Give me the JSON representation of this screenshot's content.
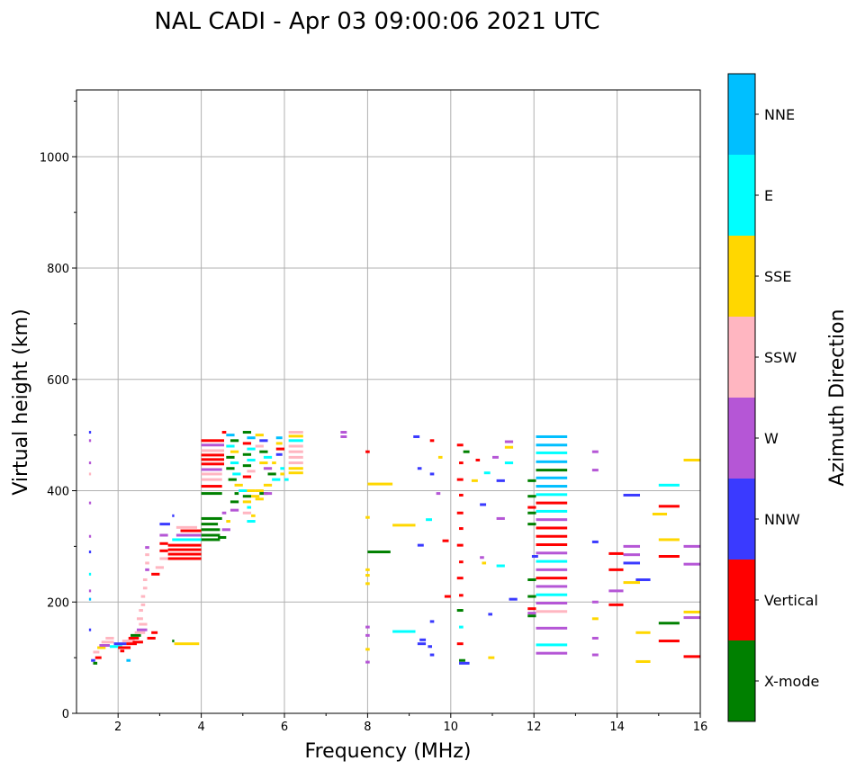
{
  "chart_data": {
    "type": "scatter",
    "title": "NAL CADI - Apr 03 09:00:06 2021 UTC",
    "xlabel": "Frequency (MHz)",
    "ylabel": "Virtual height (km)",
    "xlim": [
      1,
      16
    ],
    "ylim": [
      0,
      1120
    ],
    "x_ticks": [
      "2",
      "4",
      "6",
      "8",
      "10",
      "12",
      "14",
      "16"
    ],
    "y_ticks": [
      "0",
      "200",
      "400",
      "600",
      "800",
      "1000"
    ],
    "grid": true,
    "colorbar": {
      "title": "Azimuth Direction",
      "categories": [
        {
          "label": "X-mode",
          "color": "#008000"
        },
        {
          "label": "Vertical",
          "color": "#ff0000"
        },
        {
          "label": "NNW",
          "color": "#3a3aff"
        },
        {
          "label": "W",
          "color": "#b556d6"
        },
        {
          "label": "SSW",
          "color": "#ffb6c1"
        },
        {
          "label": "SSE",
          "color": "#ffd700"
        },
        {
          "label": "E",
          "color": "#00ffff"
        },
        {
          "label": "NNE",
          "color": "#00bfff"
        }
      ]
    },
    "columns_note": "each segment: [freq_start_MHz, freq_end_MHz, height_km, category_index]",
    "segments": [
      [
        1.3,
        1.35,
        505,
        2
      ],
      [
        1.3,
        1.35,
        490,
        3
      ],
      [
        1.3,
        1.35,
        450,
        3
      ],
      [
        1.3,
        1.35,
        430,
        4
      ],
      [
        1.3,
        1.35,
        378,
        3
      ],
      [
        1.3,
        1.35,
        318,
        3
      ],
      [
        1.3,
        1.35,
        290,
        2
      ],
      [
        1.3,
        1.35,
        250,
        6
      ],
      [
        1.3,
        1.35,
        220,
        3
      ],
      [
        1.3,
        1.35,
        205,
        7
      ],
      [
        1.3,
        1.35,
        150,
        2
      ],
      [
        1.35,
        1.45,
        95,
        2
      ],
      [
        1.4,
        1.5,
        90,
        0
      ],
      [
        1.45,
        1.6,
        100,
        1
      ],
      [
        1.4,
        1.55,
        110,
        4
      ],
      [
        1.5,
        1.7,
        118,
        5
      ],
      [
        1.55,
        1.8,
        122,
        3
      ],
      [
        1.6,
        1.9,
        128,
        4
      ],
      [
        1.7,
        1.9,
        135,
        4
      ],
      [
        1.8,
        2.1,
        120,
        6
      ],
      [
        1.9,
        2.2,
        125,
        2
      ],
      [
        2.0,
        2.3,
        118,
        1
      ],
      [
        2.1,
        2.4,
        130,
        4
      ],
      [
        2.2,
        2.45,
        125,
        1
      ],
      [
        2.25,
        2.5,
        135,
        1
      ],
      [
        2.3,
        2.55,
        140,
        0
      ],
      [
        2.35,
        2.6,
        128,
        1
      ],
      [
        2.4,
        2.65,
        145,
        4
      ],
      [
        2.45,
        2.7,
        150,
        3
      ],
      [
        2.5,
        2.7,
        160,
        4
      ],
      [
        2.45,
        2.6,
        170,
        4
      ],
      [
        2.5,
        2.6,
        185,
        4
      ],
      [
        2.55,
        2.65,
        195,
        4
      ],
      [
        2.55,
        2.65,
        210,
        4
      ],
      [
        2.6,
        2.7,
        225,
        4
      ],
      [
        2.6,
        2.7,
        240,
        4
      ],
      [
        2.65,
        2.75,
        258,
        3
      ],
      [
        2.65,
        2.75,
        270,
        4
      ],
      [
        2.65,
        2.75,
        285,
        4
      ],
      [
        2.65,
        2.75,
        298,
        3
      ],
      [
        2.2,
        2.3,
        95,
        7
      ],
      [
        2.05,
        2.15,
        112,
        1
      ],
      [
        2.7,
        2.9,
        135,
        1
      ],
      [
        2.8,
        2.95,
        145,
        1
      ],
      [
        3.3,
        3.35,
        130,
        0
      ],
      [
        3.35,
        3.95,
        125,
        5
      ],
      [
        2.8,
        3.0,
        250,
        1
      ],
      [
        2.9,
        3.1,
        262,
        4
      ],
      [
        3.0,
        3.2,
        278,
        4
      ],
      [
        3.0,
        3.2,
        292,
        1
      ],
      [
        3.0,
        3.2,
        305,
        1
      ],
      [
        3.0,
        3.2,
        320,
        3
      ],
      [
        3.0,
        3.25,
        340,
        2
      ],
      [
        3.3,
        3.35,
        355,
        2
      ],
      [
        3.2,
        4.0,
        278,
        1
      ],
      [
        3.2,
        4.0,
        286,
        1
      ],
      [
        3.2,
        4.0,
        294,
        1
      ],
      [
        3.2,
        4.0,
        302,
        1
      ],
      [
        3.3,
        4.0,
        312,
        6
      ],
      [
        3.4,
        4.0,
        320,
        3
      ],
      [
        3.5,
        4.0,
        328,
        1
      ],
      [
        3.4,
        3.9,
        334,
        4
      ],
      [
        4.0,
        4.45,
        312,
        0
      ],
      [
        4.0,
        4.45,
        320,
        0
      ],
      [
        4.0,
        4.45,
        330,
        0
      ],
      [
        4.0,
        4.4,
        340,
        0
      ],
      [
        4.0,
        4.5,
        350,
        0
      ],
      [
        4.4,
        4.6,
        316,
        0
      ],
      [
        4.5,
        4.7,
        330,
        3
      ],
      [
        4.6,
        4.7,
        345,
        5
      ],
      [
        4.5,
        4.6,
        360,
        3
      ],
      [
        4.7,
        4.9,
        365,
        3
      ],
      [
        4.7,
        4.9,
        380,
        0
      ],
      [
        4.8,
        4.9,
        395,
        0
      ],
      [
        4.0,
        4.5,
        395,
        0
      ],
      [
        4.0,
        4.5,
        408,
        1
      ],
      [
        4.0,
        4.5,
        420,
        4
      ],
      [
        4.0,
        4.5,
        430,
        4
      ],
      [
        4.0,
        4.5,
        438,
        3
      ],
      [
        4.0,
        4.55,
        448,
        1
      ],
      [
        4.0,
        4.55,
        456,
        1
      ],
      [
        4.0,
        4.55,
        464,
        1
      ],
      [
        4.0,
        4.55,
        472,
        4
      ],
      [
        4.0,
        4.55,
        482,
        3
      ],
      [
        4.0,
        4.55,
        490,
        1
      ],
      [
        4.5,
        4.6,
        505,
        1
      ],
      [
        4.6,
        4.8,
        500,
        7
      ],
      [
        4.7,
        4.9,
        490,
        0
      ],
      [
        4.6,
        4.8,
        480,
        6
      ],
      [
        4.7,
        4.9,
        470,
        5
      ],
      [
        4.6,
        4.8,
        460,
        0
      ],
      [
        4.7,
        4.9,
        450,
        6
      ],
      [
        4.6,
        4.8,
        440,
        0
      ],
      [
        4.75,
        4.95,
        430,
        6
      ],
      [
        4.65,
        4.85,
        420,
        0
      ],
      [
        4.8,
        5.0,
        410,
        5
      ],
      [
        4.9,
        5.1,
        400,
        6
      ],
      [
        5.0,
        5.2,
        390,
        0
      ],
      [
        5.0,
        5.2,
        380,
        5
      ],
      [
        5.1,
        5.2,
        370,
        6
      ],
      [
        5.0,
        5.2,
        360,
        4
      ],
      [
        5.1,
        5.3,
        400,
        5
      ],
      [
        5.2,
        5.4,
        390,
        5
      ],
      [
        5.3,
        5.5,
        400,
        5
      ],
      [
        5.4,
        5.6,
        395,
        0
      ],
      [
        5.3,
        5.5,
        385,
        5
      ],
      [
        5.1,
        5.3,
        345,
        6
      ],
      [
        5.2,
        5.3,
        355,
        5
      ],
      [
        5.0,
        5.2,
        425,
        1
      ],
      [
        5.1,
        5.3,
        435,
        4
      ],
      [
        5.0,
        5.2,
        445,
        0
      ],
      [
        5.1,
        5.3,
        455,
        6
      ],
      [
        5.0,
        5.2,
        465,
        0
      ],
      [
        5.1,
        5.3,
        475,
        6
      ],
      [
        5.0,
        5.2,
        485,
        1
      ],
      [
        5.1,
        5.3,
        495,
        7
      ],
      [
        5.0,
        5.2,
        505,
        0
      ],
      [
        5.3,
        5.5,
        500,
        5
      ],
      [
        5.4,
        5.6,
        490,
        2
      ],
      [
        5.3,
        5.5,
        480,
        4
      ],
      [
        5.4,
        5.6,
        470,
        0
      ],
      [
        5.5,
        5.7,
        460,
        6
      ],
      [
        5.4,
        5.6,
        450,
        5
      ],
      [
        5.5,
        5.7,
        440,
        3
      ],
      [
        5.6,
        5.8,
        430,
        0
      ],
      [
        5.7,
        5.9,
        420,
        6
      ],
      [
        5.5,
        5.7,
        410,
        5
      ],
      [
        5.7,
        5.8,
        450,
        5
      ],
      [
        5.8,
        5.95,
        465,
        2
      ],
      [
        5.8,
        6.0,
        475,
        1
      ],
      [
        5.8,
        5.95,
        485,
        5
      ],
      [
        5.8,
        5.95,
        495,
        7
      ],
      [
        5.9,
        6.0,
        440,
        6
      ],
      [
        5.9,
        6.0,
        430,
        5
      ],
      [
        5.5,
        5.7,
        395,
        3
      ],
      [
        6.1,
        6.45,
        505,
        4
      ],
      [
        6.1,
        6.45,
        498,
        5
      ],
      [
        6.1,
        6.45,
        490,
        6
      ],
      [
        6.1,
        6.45,
        480,
        4
      ],
      [
        6.1,
        6.45,
        470,
        4
      ],
      [
        6.1,
        6.45,
        460,
        4
      ],
      [
        6.1,
        6.45,
        450,
        4
      ],
      [
        6.1,
        6.45,
        440,
        5
      ],
      [
        6.1,
        6.45,
        432,
        5
      ],
      [
        6.0,
        6.1,
        420,
        6
      ],
      [
        7.35,
        7.5,
        505,
        3
      ],
      [
        7.35,
        7.5,
        497,
        3
      ],
      [
        7.95,
        8.05,
        470,
        1
      ],
      [
        8.0,
        8.6,
        412,
        5
      ],
      [
        7.95,
        8.05,
        352,
        5
      ],
      [
        8.0,
        8.55,
        290,
        0
      ],
      [
        7.95,
        8.05,
        258,
        5
      ],
      [
        7.95,
        8.05,
        248,
        5
      ],
      [
        7.95,
        8.05,
        233,
        5
      ],
      [
        7.95,
        8.05,
        155,
        3
      ],
      [
        7.95,
        8.05,
        140,
        3
      ],
      [
        7.95,
        8.05,
        115,
        5
      ],
      [
        7.95,
        8.05,
        92,
        3
      ],
      [
        8.6,
        9.15,
        338,
        5
      ],
      [
        8.6,
        9.15,
        147,
        6
      ],
      [
        9.1,
        9.25,
        497,
        2
      ],
      [
        9.2,
        9.3,
        440,
        2
      ],
      [
        9.2,
        9.35,
        302,
        2
      ],
      [
        9.25,
        9.4,
        132,
        2
      ],
      [
        9.2,
        9.4,
        125,
        2
      ],
      [
        9.4,
        9.55,
        348,
        6
      ],
      [
        9.5,
        9.6,
        490,
        1
      ],
      [
        9.5,
        9.6,
        430,
        2
      ],
      [
        9.5,
        9.6,
        165,
        2
      ],
      [
        9.45,
        9.55,
        120,
        2
      ],
      [
        9.5,
        9.6,
        105,
        2
      ],
      [
        9.65,
        9.75,
        395,
        3
      ],
      [
        9.7,
        9.8,
        460,
        5
      ],
      [
        9.8,
        9.95,
        310,
        1
      ],
      [
        9.85,
        10.0,
        210,
        1
      ],
      [
        10.15,
        10.3,
        482,
        1
      ],
      [
        10.2,
        10.3,
        450,
        1
      ],
      [
        10.15,
        10.3,
        420,
        1
      ],
      [
        10.2,
        10.3,
        392,
        1
      ],
      [
        10.15,
        10.3,
        360,
        1
      ],
      [
        10.2,
        10.3,
        332,
        1
      ],
      [
        10.15,
        10.3,
        302,
        1
      ],
      [
        10.2,
        10.3,
        272,
        1
      ],
      [
        10.15,
        10.3,
        243,
        1
      ],
      [
        10.2,
        10.3,
        212,
        1
      ],
      [
        10.15,
        10.3,
        185,
        0
      ],
      [
        10.2,
        10.3,
        155,
        6
      ],
      [
        10.15,
        10.3,
        125,
        1
      ],
      [
        10.2,
        10.35,
        95,
        0
      ],
      [
        10.2,
        10.45,
        90,
        2
      ],
      [
        10.3,
        10.45,
        470,
        0
      ],
      [
        10.5,
        10.65,
        418,
        5
      ],
      [
        10.6,
        10.7,
        455,
        1
      ],
      [
        10.7,
        10.85,
        375,
        2
      ],
      [
        10.7,
        10.8,
        280,
        3
      ],
      [
        10.75,
        10.85,
        270,
        5
      ],
      [
        10.8,
        10.95,
        432,
        6
      ],
      [
        10.9,
        11.0,
        178,
        2
      ],
      [
        10.9,
        11.05,
        100,
        5
      ],
      [
        11.0,
        11.15,
        460,
        3
      ],
      [
        11.1,
        11.3,
        418,
        2
      ],
      [
        11.1,
        11.3,
        350,
        3
      ],
      [
        11.1,
        11.3,
        265,
        6
      ],
      [
        11.3,
        11.5,
        488,
        3
      ],
      [
        11.3,
        11.5,
        478,
        5
      ],
      [
        11.3,
        11.5,
        450,
        6
      ],
      [
        11.4,
        11.6,
        205,
        2
      ],
      [
        11.85,
        12.05,
        418,
        0
      ],
      [
        11.85,
        12.05,
        390,
        0
      ],
      [
        11.85,
        12.05,
        370,
        1
      ],
      [
        11.85,
        12.05,
        360,
        0
      ],
      [
        11.85,
        12.05,
        340,
        0
      ],
      [
        11.85,
        12.05,
        240,
        0
      ],
      [
        11.85,
        12.05,
        210,
        0
      ],
      [
        11.85,
        12.05,
        188,
        1
      ],
      [
        11.85,
        12.05,
        180,
        3
      ],
      [
        11.85,
        12.05,
        175,
        0
      ],
      [
        11.95,
        12.1,
        282,
        2
      ],
      [
        12.05,
        12.8,
        497,
        7
      ],
      [
        12.05,
        12.8,
        482,
        7
      ],
      [
        12.05,
        12.8,
        468,
        6
      ],
      [
        12.05,
        12.8,
        452,
        7
      ],
      [
        12.05,
        12.8,
        437,
        0
      ],
      [
        12.05,
        12.8,
        423,
        7
      ],
      [
        12.05,
        12.8,
        408,
        7
      ],
      [
        12.05,
        12.8,
        393,
        6
      ],
      [
        12.05,
        12.8,
        378,
        1
      ],
      [
        12.05,
        12.8,
        363,
        6
      ],
      [
        12.05,
        12.8,
        348,
        3
      ],
      [
        12.05,
        12.8,
        333,
        1
      ],
      [
        12.05,
        12.8,
        318,
        1
      ],
      [
        12.05,
        12.8,
        303,
        1
      ],
      [
        12.05,
        12.8,
        288,
        3
      ],
      [
        12.05,
        12.8,
        273,
        6
      ],
      [
        12.05,
        12.8,
        258,
        3
      ],
      [
        12.05,
        12.8,
        243,
        1
      ],
      [
        12.05,
        12.8,
        228,
        3
      ],
      [
        12.05,
        12.8,
        213,
        6
      ],
      [
        12.05,
        12.8,
        198,
        3
      ],
      [
        12.05,
        12.8,
        183,
        4
      ],
      [
        12.05,
        12.8,
        153,
        3
      ],
      [
        12.05,
        12.8,
        123,
        6
      ],
      [
        12.05,
        12.8,
        108,
        3
      ],
      [
        13.4,
        13.55,
        470,
        3
      ],
      [
        13.4,
        13.55,
        437,
        3
      ],
      [
        13.4,
        13.55,
        308,
        2
      ],
      [
        13.4,
        13.55,
        200,
        3
      ],
      [
        13.4,
        13.55,
        170,
        5
      ],
      [
        13.4,
        13.55,
        135,
        3
      ],
      [
        13.4,
        13.55,
        105,
        3
      ],
      [
        13.8,
        14.15,
        287,
        1
      ],
      [
        13.8,
        14.15,
        258,
        1
      ],
      [
        13.8,
        14.15,
        220,
        3
      ],
      [
        13.8,
        14.15,
        195,
        1
      ],
      [
        14.15,
        14.55,
        392,
        2
      ],
      [
        14.15,
        14.55,
        300,
        3
      ],
      [
        14.15,
        14.55,
        285,
        3
      ],
      [
        14.15,
        14.55,
        270,
        2
      ],
      [
        14.15,
        14.55,
        235,
        5
      ],
      [
        14.45,
        14.8,
        240,
        2
      ],
      [
        14.45,
        14.8,
        145,
        5
      ],
      [
        14.45,
        14.8,
        93,
        5
      ],
      [
        14.85,
        15.2,
        358,
        5
      ],
      [
        15.0,
        15.5,
        410,
        6
      ],
      [
        15.0,
        15.5,
        372,
        1
      ],
      [
        15.0,
        15.5,
        312,
        5
      ],
      [
        15.0,
        15.5,
        282,
        1
      ],
      [
        15.0,
        15.5,
        162,
        0
      ],
      [
        15.0,
        15.5,
        130,
        1
      ],
      [
        15.6,
        16.0,
        455,
        5
      ],
      [
        15.6,
        16.0,
        300,
        3
      ],
      [
        15.6,
        16.0,
        268,
        3
      ],
      [
        15.6,
        16.0,
        182,
        5
      ],
      [
        15.6,
        16.0,
        172,
        3
      ],
      [
        15.6,
        16.0,
        102,
        1
      ]
    ]
  }
}
